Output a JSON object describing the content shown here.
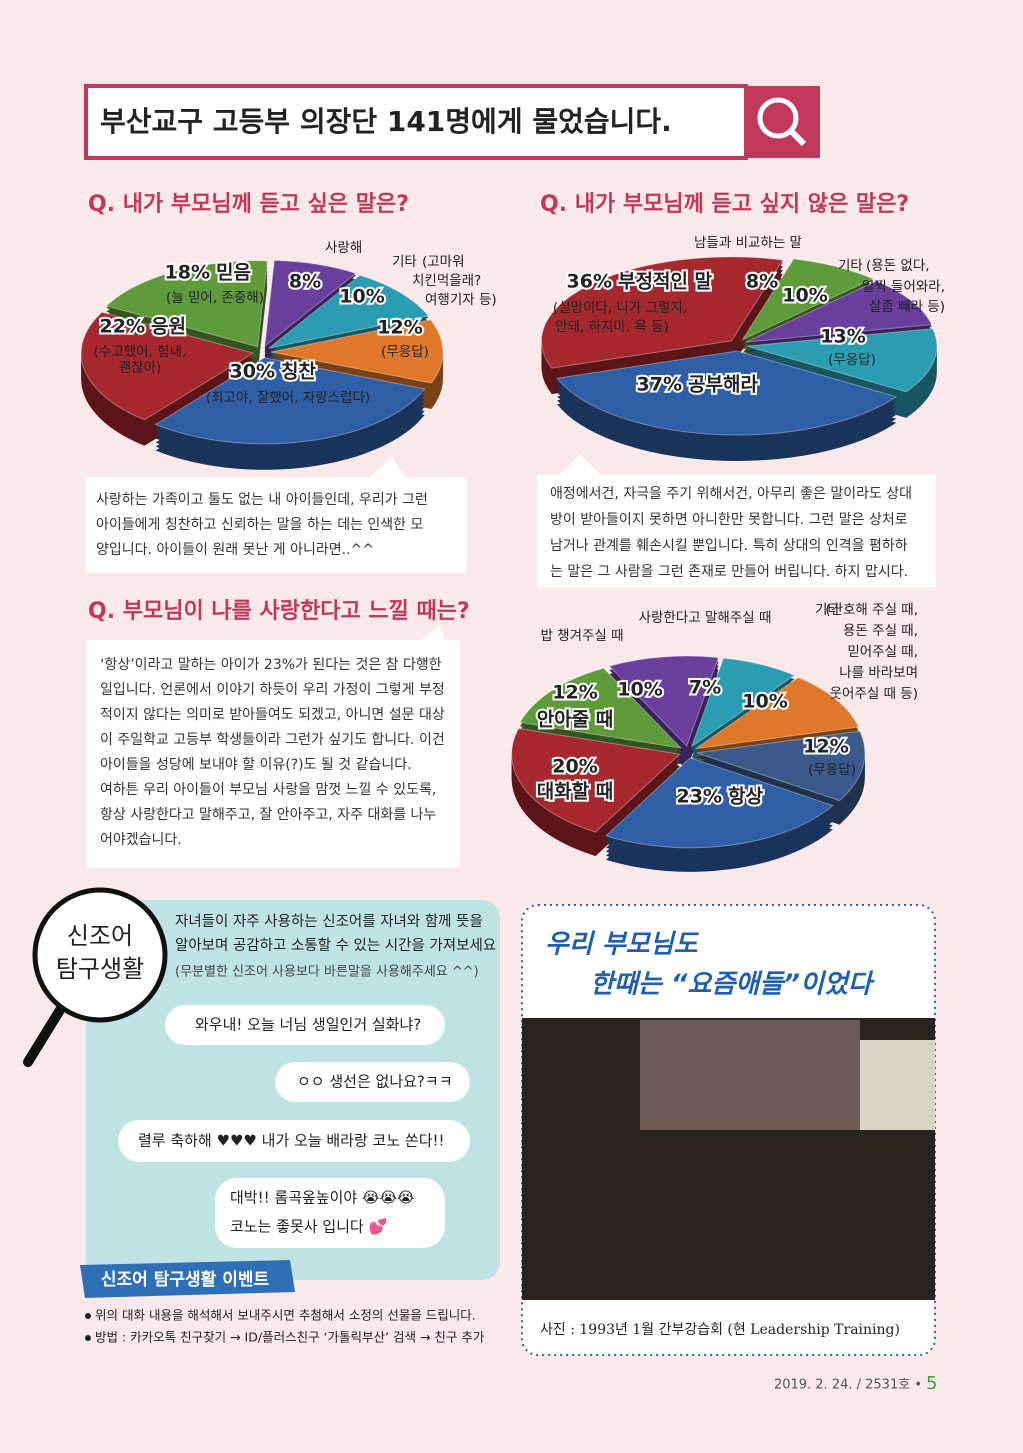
{
  "header": {
    "title": "부산교구 고등부 의장단 141명에게 물었습니다."
  },
  "chart_data": [
    {
      "type": "pie",
      "title": "Q. 내가 부모님께 듣고 싶은 말은?",
      "categories": [
        "(무응답)",
        "칭찬",
        "응원",
        "믿음",
        "사랑해",
        "기타"
      ],
      "values": [
        12,
        30,
        22,
        18,
        8,
        10
      ],
      "value_labels": [
        "12%",
        "30%",
        "22%",
        "18%",
        "8%",
        "10%"
      ],
      "notes": [
        null,
        [
          "(최고야, 잘했어, 자랑스럽다)"
        ],
        [
          "(수고했어, 힘내,",
          "괜찮아)"
        ],
        [
          "(늘 믿어, 존중해)"
        ],
        null,
        [
          "(고마워",
          "치킨먹을래?",
          "여행기자 등)"
        ]
      ],
      "colors": [
        "#e0782c",
        "#2f5fa6",
        "#a7282f",
        "#5f9a3b",
        "#6a3f9e",
        "#2a9db3"
      ],
      "comment": [
        "사랑하는 가족이고 둘도 없는 내 아이들인데, 우리가 그런",
        "아이들에게 칭찬하고 신뢰하는 말을 하는 데는 인색한 모",
        "양입니다. 아이들이 원래 못난 게 아니라면..^^"
      ]
    },
    {
      "type": "pie",
      "title": "Q. 내가 부모님께 듣고 싶지 않은 말은?",
      "categories": [
        "(무응답)",
        "공부해라",
        "부정적인 말",
        "남들과 비교하는 말",
        "기타"
      ],
      "values": [
        13,
        37,
        36,
        8,
        10
      ],
      "value_labels": [
        "13%",
        "37%",
        "36%",
        "8%",
        "10%"
      ],
      "notes": [
        null,
        null,
        [
          "(실망이다, 니가 그렇지,",
          "안돼, 하지마, 욕 등)"
        ],
        null,
        [
          "(용돈 없다,",
          "일찍 들어와라,",
          "살좀 빼라 등)"
        ]
      ],
      "colors": [
        "#2a9db3",
        "#2f5fa6",
        "#a7282f",
        "#5f9a3b",
        "#6a3f9e"
      ],
      "comment": [
        "애정에서건, 자극을 주기 위해서건, 아무리 좋은 말이라도 상대",
        "방이 받아들이지 못하면 아니한만 못합니다. 그런 말은 상처로",
        "남거나 관계를 훼손시킬 뿐입니다. 특히 상대의 인격을 폄하하",
        "는 말은 그 사람을 그런 존재로 만들어 버립니다. 하지 맙시다."
      ]
    },
    {
      "type": "pie",
      "title": "Q. 부모님이 나를 사랑한다고 느낄 때는?",
      "categories": [
        "(무응답)",
        "항상",
        "대화할 때",
        "안아줄 때",
        "밥 챙겨주실 때",
        "사랑한다고 말해주실 때",
        "기타"
      ],
      "values": [
        12,
        23,
        20,
        12,
        10,
        7,
        10
      ],
      "value_labels": [
        "12%",
        "23%",
        "20%",
        "12%",
        "10%",
        "7%",
        "10%"
      ],
      "notes": [
        null,
        null,
        null,
        null,
        null,
        null,
        [
          "(간호해 주실 때,",
          "용돈 주실 때,",
          "믿어주실 때,",
          "나를 바라보며",
          "웃어주실 때 등)"
        ]
      ],
      "colors": [
        "#3c5a8c",
        "#2f5fa6",
        "#a7282f",
        "#5f9a3b",
        "#6a3f9e",
        "#2a9db3",
        "#e0782c"
      ],
      "comment": [
        "‘항상’이라고 말하는 아이가 23%가 된다는 것은 참 다행한",
        "일입니다. 언론에서 이야기 하듯이 우리 가정이 그렇게 부정",
        "적이지 않다는 의미로 받아들여도 되겠고, 아니면 설문 대상",
        "이 주일학교 고등부 학생들이라 그런가 싶기도 합니다. 이건",
        "아이들을 성당에 보내야 할 이유(?)도 될 것 같습니다.",
        "여하튼 우리 아이들이 부모님 사랑을 맘껏 느낄 수 있도록,",
        "항상 사랑한다고 말해주고, 잘 안아주고, 자주 대화를 나누",
        "어야겠습니다."
      ]
    }
  ],
  "slang": {
    "badge": [
      "신조어",
      "탐구생활"
    ],
    "intro": [
      "자녀들이 자주 사용하는 신조어를 자녀와 함께 뜻을",
      "알아보며 공감하고 소통할 수 있는 시간을 가져보세요"
    ],
    "note": "(무분별한 신조어 사용보다 바른말을 사용해주세요 ^^)",
    "chats": [
      [
        "와우내! 오늘 너님 생일인거 실화냐?"
      ],
      [
        "ㅇㅇ 생선은 없나요?ㅋㅋ"
      ],
      [
        "렬루 축하해 ♥♥♥ 내가 오늘 배라랑 코노 쏜다!!"
      ],
      [
        "대박!! 롬곡옾높이야 😭😭😭",
        "코노는 좋못사 입니다 💕"
      ]
    ],
    "event_title": "신조어 탐구생활 이벤트",
    "bullets": [
      "위의 대화 내용을 해석해서 보내주시면 추첨해서 소정의 선물을 드립니다.",
      "방법 : 카카오톡 친구찾기 → ID/플러스친구 ‘가톨릭부산’ 검색 → 친구 추가"
    ]
  },
  "photo": {
    "title": [
      "우리 부모님도",
      "한때는 “요즘애들”이었다"
    ],
    "caption": "사진 : 1993년 1월 간부강습회 (현 Leadership Training)"
  },
  "footer": {
    "issue": "2019. 2. 24. / 2531호 •",
    "page": "5"
  }
}
